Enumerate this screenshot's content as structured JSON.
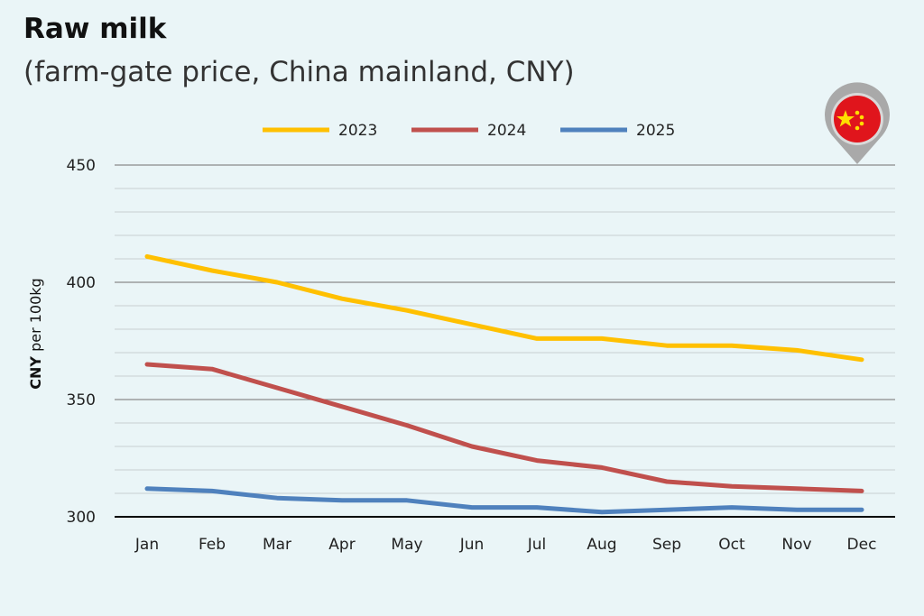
{
  "chart_data": {
    "type": "line",
    "title": "Raw milk",
    "subtitle": "(farm-gate price, China mainland, CNY)",
    "ylabel_bold": "CNY",
    "ylabel_rest": "per 100kg",
    "xlabel": "",
    "ylim": [
      300,
      450
    ],
    "yticks": [
      300,
      350,
      400,
      450
    ],
    "minor_grid_step": 10,
    "grid": true,
    "legend_position": "top",
    "categories": [
      "Jan",
      "Feb",
      "Mar",
      "Apr",
      "May",
      "Jun",
      "Jul",
      "Aug",
      "Sep",
      "Oct",
      "Nov",
      "Dec"
    ],
    "series": [
      {
        "name": "2023",
        "color": "#ffc000",
        "values": [
          411,
          405,
          400,
          393,
          388,
          382,
          376,
          376,
          373,
          373,
          371,
          367
        ]
      },
      {
        "name": "2024",
        "color": "#c0504d",
        "values": [
          365,
          363,
          355,
          347,
          339,
          330,
          324,
          321,
          315,
          313,
          312,
          311
        ]
      },
      {
        "name": "2025",
        "color": "#4f81bd",
        "values": [
          312,
          311,
          308,
          307,
          307,
          304,
          304,
          302,
          303,
          304,
          303,
          303
        ]
      }
    ],
    "flag_icon": "china-flag-pin-icon"
  }
}
